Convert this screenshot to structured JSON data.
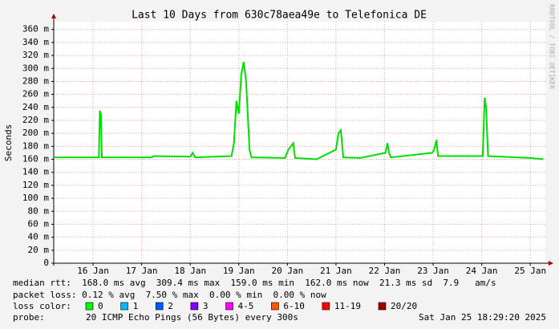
{
  "chart_data": {
    "type": "line",
    "title": "Last 10 Days from 630c78aea49e to Telefonica DE",
    "ylabel": "Seconds",
    "watermark": "RRDTOOL / TOBI OETIKER",
    "color": "#00e000",
    "x": [
      15.69,
      16.62,
      16.64,
      16.66,
      16.68,
      17.7,
      17.75,
      18.5,
      18.55,
      18.6,
      18.65,
      19.35,
      19.4,
      19.45,
      19.5,
      19.55,
      19.6,
      19.65,
      19.72,
      19.76,
      20.45,
      20.52,
      20.57,
      20.62,
      20.66,
      21.1,
      21.5,
      21.55,
      21.6,
      21.65,
      22.0,
      22.52,
      22.56,
      22.59,
      22.63,
      23.48,
      23.52,
      23.57,
      23.6,
      24.52,
      24.56,
      24.59,
      24.63,
      25.5,
      25.77
    ],
    "values": [
      163,
      163,
      235,
      230,
      163,
      163,
      165,
      164,
      170,
      163,
      163,
      165,
      185,
      250,
      230,
      290,
      310,
      280,
      175,
      163,
      162,
      175,
      180,
      185,
      162,
      160,
      175,
      200,
      205,
      163,
      162,
      170,
      185,
      170,
      163,
      170,
      175,
      190,
      165,
      165,
      255,
      240,
      165,
      162,
      160
    ],
    "xlim": [
      15.69,
      25.81
    ],
    "xticks": [
      {
        "value": 16.5,
        "label": "16 Jan"
      },
      {
        "value": 17.5,
        "label": "17 Jan"
      },
      {
        "value": 18.5,
        "label": "18 Jan"
      },
      {
        "value": 19.5,
        "label": "19 Jan"
      },
      {
        "value": 20.5,
        "label": "20 Jan"
      },
      {
        "value": 21.5,
        "label": "21 Jan"
      },
      {
        "value": 22.5,
        "label": "22 Jan"
      },
      {
        "value": 23.5,
        "label": "23 Jan"
      },
      {
        "value": 24.5,
        "label": "24 Jan"
      },
      {
        "value": 25.5,
        "label": "25 Jan"
      }
    ],
    "ylim": [
      0,
      372
    ],
    "yticks": [
      0,
      {
        "value": 20,
        "label": "20 m"
      },
      {
        "value": 40,
        "label": "40 m"
      },
      {
        "value": 60,
        "label": "60 m"
      },
      {
        "value": 80,
        "label": "80 m"
      },
      {
        "value": 100,
        "label": "100 m"
      },
      {
        "value": 120,
        "label": "120 m"
      },
      {
        "value": 140,
        "label": "140 m"
      },
      {
        "value": 160,
        "label": "160 m"
      },
      {
        "value": 180,
        "label": "180 m"
      },
      {
        "value": 200,
        "label": "200 m"
      },
      {
        "value": 220,
        "label": "220 m"
      },
      {
        "value": 240,
        "label": "240 m"
      },
      {
        "value": 260,
        "label": "260 m"
      },
      {
        "value": 280,
        "label": "280 m"
      },
      {
        "value": 300,
        "label": "300 m"
      },
      {
        "value": 320,
        "label": "320 m"
      },
      {
        "value": 340,
        "label": "340 m"
      },
      {
        "value": 360,
        "label": "360 m"
      }
    ],
    "grid": true,
    "stats": [
      "median rtt:  168.0 ms avg  309.4 ms max  159.0 ms min  162.0 ms now  21.3 ms sd  7.9   am/s",
      "packet loss: 0.12 % avg  7.50 % max  0.00 % min  0.00 % now"
    ],
    "loss_label": "loss color:",
    "legend": [
      {
        "name": "0",
        "color": "#00ff00"
      },
      {
        "name": "1",
        "color": "#00b8ff"
      },
      {
        "name": "2",
        "color": "#0059ff"
      },
      {
        "name": "3",
        "color": "#7e00ff"
      },
      {
        "name": "4-5",
        "color": "#ff00ff"
      },
      {
        "name": "6-10",
        "color": "#ff5500"
      },
      {
        "name": "11-19",
        "color": "#ff0000"
      },
      {
        "name": "20/20",
        "color": "#a10000"
      }
    ],
    "probe_label": "probe:",
    "probe": "20 ICMP Echo Pings (56 Bytes) every 300s",
    "timestamp": "Sat Jan 25 18:29:20 2025"
  }
}
